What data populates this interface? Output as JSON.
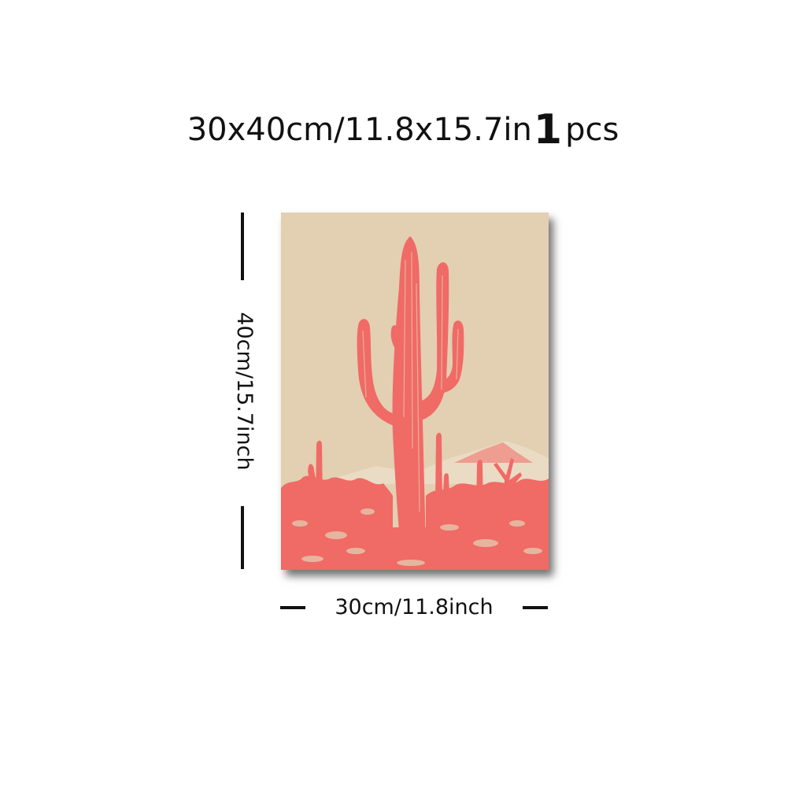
{
  "title": {
    "size_text": "30x40cm/11.8x15.7in",
    "quantity_number": "1",
    "quantity_unit": "pcs"
  },
  "dimensions": {
    "height_label": "40cm/15.7inch",
    "width_label": "30cm/11.8inch"
  },
  "artwork": {
    "subject": "saguaro-cactus-desert-print",
    "background_color": "#e3cfb1",
    "ink_color": "#f06a66"
  }
}
